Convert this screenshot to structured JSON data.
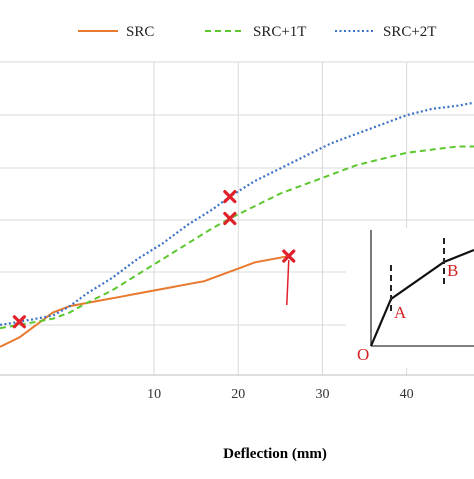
{
  "chart_data": {
    "type": "line",
    "xlabel": "Deflection (mm)",
    "ylabel": "",
    "xlim": [
      -8.3,
      48
    ],
    "ylim": [
      0,
      1
    ],
    "x_ticks": [
      "10",
      "20",
      "30",
      "40"
    ],
    "grid": true,
    "legend_position": "top",
    "series": [
      {
        "name": "SRC",
        "color": "#e8792e",
        "dash": "solid",
        "x": [
          -8.3,
          -6,
          -4,
          -2,
          0,
          2,
          4,
          6,
          8,
          10,
          12,
          14,
          16,
          18,
          20,
          22,
          24,
          26
        ],
        "y": [
          0.09,
          0.12,
          0.16,
          0.2,
          0.22,
          0.23,
          0.24,
          0.25,
          0.26,
          0.27,
          0.28,
          0.29,
          0.3,
          0.32,
          0.34,
          0.36,
          0.37,
          0.38
        ],
        "markers": [
          {
            "x": 26,
            "y": 0.38
          }
        ]
      },
      {
        "name": "SRC+1T",
        "color": "#5cc72e",
        "dash": "dashed",
        "x": [
          -8.3,
          -6,
          -4,
          -2,
          0,
          2,
          5,
          8,
          11,
          14,
          17,
          19,
          22,
          25,
          28,
          31,
          34,
          37,
          40,
          43,
          46,
          48
        ],
        "y": [
          0.15,
          0.16,
          0.17,
          0.18,
          0.2,
          0.23,
          0.27,
          0.32,
          0.37,
          0.42,
          0.47,
          0.5,
          0.54,
          0.58,
          0.61,
          0.64,
          0.67,
          0.69,
          0.71,
          0.72,
          0.73,
          0.73
        ],
        "markers": [
          {
            "x": 19,
            "y": 0.5
          }
        ]
      },
      {
        "name": "SRC+2T",
        "color": "#3a72c4",
        "dash": "dotted",
        "x": [
          -8.3,
          -6,
          -4,
          -2,
          0,
          2,
          5,
          8,
          11,
          14,
          17,
          19,
          22,
          25,
          28,
          31,
          34,
          37,
          40,
          43,
          46,
          48
        ],
        "y": [
          0.16,
          0.17,
          0.18,
          0.19,
          0.22,
          0.26,
          0.31,
          0.37,
          0.42,
          0.48,
          0.53,
          0.57,
          0.62,
          0.66,
          0.7,
          0.74,
          0.77,
          0.8,
          0.83,
          0.85,
          0.86,
          0.87
        ],
        "markers": [
          {
            "x": 19,
            "y": 0.57
          }
        ]
      }
    ],
    "shared_markers": [
      {
        "x": -6,
        "y": 0.17
      }
    ],
    "inset": {
      "points": [
        "O",
        "A",
        "B"
      ]
    }
  }
}
